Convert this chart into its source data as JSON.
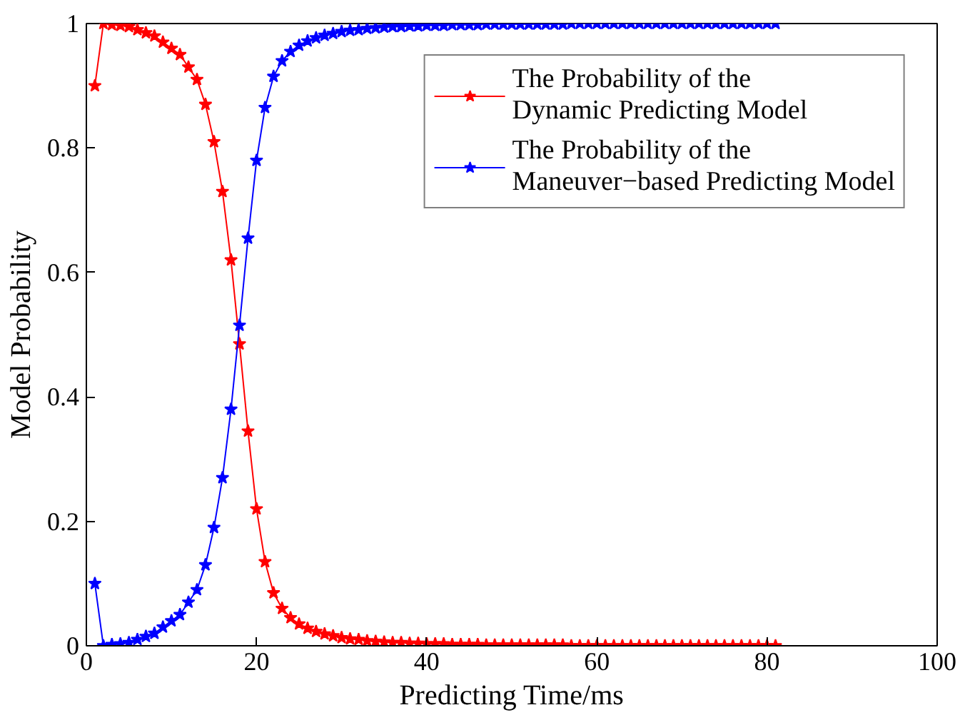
{
  "chart_data": {
    "type": "line",
    "xlabel": "Predicting Time/ms",
    "ylabel": "Model Probability",
    "x": [
      1,
      2,
      3,
      4,
      5,
      6,
      7,
      8,
      9,
      10,
      11,
      12,
      13,
      14,
      15,
      16,
      17,
      18,
      19,
      20,
      21,
      22,
      23,
      24,
      25,
      26,
      27,
      28,
      29,
      30,
      31,
      32,
      33,
      34,
      35,
      36,
      37,
      38,
      39,
      40,
      41,
      42,
      43,
      44,
      45,
      46,
      47,
      48,
      49,
      50,
      51,
      52,
      53,
      54,
      55,
      56,
      57,
      58,
      59,
      60,
      61,
      62,
      63,
      64,
      65,
      66,
      67,
      68,
      69,
      70,
      71,
      72,
      73,
      74,
      75,
      76,
      77,
      78,
      79,
      80,
      81
    ],
    "series": [
      {
        "name": "The Probability of the\nDynamic Predicting Model",
        "color": "#ff0000",
        "values": [
          0.9,
          1,
          0.998,
          0.997,
          0.995,
          0.99,
          0.985,
          0.98,
          0.97,
          0.96,
          0.95,
          0.93,
          0.91,
          0.87,
          0.81,
          0.73,
          0.62,
          0.485,
          0.345,
          0.22,
          0.135,
          0.085,
          0.06,
          0.045,
          0.035,
          0.028,
          0.023,
          0.019,
          0.016,
          0.013,
          0.011,
          0.01,
          0.008,
          0.007,
          0.006,
          0.005,
          0.005,
          0.004,
          0.004,
          0.003,
          0.003,
          0.003,
          0.002,
          0.002,
          0.002,
          0.002,
          0.001,
          0.001,
          0.001,
          0.001,
          0.001,
          0.001,
          0.001,
          0.001,
          0.001,
          0.001,
          0,
          0,
          0,
          0,
          0,
          0,
          0,
          0,
          0,
          0,
          0,
          0,
          0,
          0,
          0,
          0,
          0,
          0,
          0,
          0,
          0,
          0,
          0,
          0,
          0
        ]
      },
      {
        "name": "The Probability of the\nManeuver−based Predicting Model",
        "color": "#0000ff",
        "values": [
          0.1,
          0,
          0.002,
          0.003,
          0.005,
          0.01,
          0.015,
          0.02,
          0.03,
          0.04,
          0.05,
          0.07,
          0.09,
          0.13,
          0.19,
          0.27,
          0.38,
          0.515,
          0.655,
          0.78,
          0.865,
          0.915,
          0.94,
          0.955,
          0.965,
          0.972,
          0.977,
          0.981,
          0.984,
          0.987,
          0.989,
          0.99,
          0.992,
          0.993,
          0.994,
          0.995,
          0.995,
          0.996,
          0.996,
          0.997,
          0.997,
          0.997,
          0.998,
          0.998,
          0.998,
          0.998,
          0.999,
          0.999,
          0.999,
          0.999,
          0.999,
          0.999,
          0.999,
          0.999,
          0.999,
          0.999,
          1,
          1,
          1,
          1,
          1,
          1,
          1,
          1,
          1,
          1,
          1,
          1,
          1,
          1,
          1,
          1,
          1,
          1,
          1,
          1,
          1,
          1,
          1,
          1,
          1
        ]
      }
    ],
    "xlim": [
      0,
      100
    ],
    "ylim": [
      0,
      1
    ],
    "xticks": [
      0,
      20,
      40,
      60,
      80,
      100
    ],
    "yticks": [
      0,
      0.2,
      0.4,
      0.6,
      0.8,
      1
    ],
    "marker": "star",
    "line_style": "solid",
    "legend": "top right",
    "grid": false
  }
}
